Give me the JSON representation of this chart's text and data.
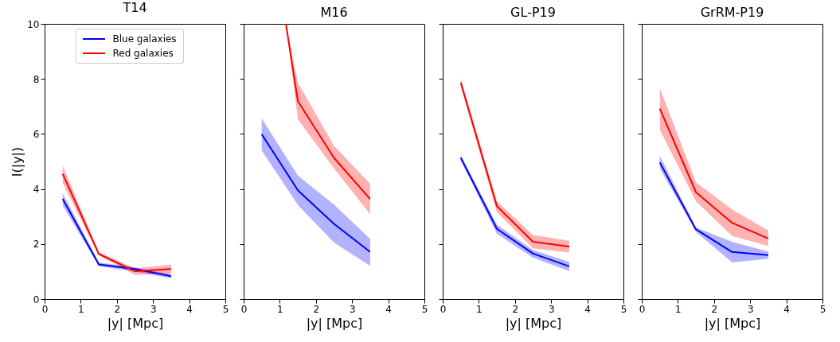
{
  "chart_data": [
    {
      "type": "line",
      "title": "T14",
      "xlabel": "|y| [Mpc]",
      "ylabel": "I(|y|)",
      "xlim": [
        0,
        5
      ],
      "xticks": [
        0,
        1,
        2,
        3,
        4,
        5
      ],
      "ylim": [
        0,
        10
      ],
      "yticks": [
        0,
        2,
        4,
        6,
        8,
        10
      ],
      "legend": "top",
      "x": [
        0.5,
        1.5,
        2.5,
        3.5
      ],
      "series": [
        {
          "name": "Blue galaxies",
          "color": "#0000ff",
          "values": [
            3.64,
            1.26,
            1.09,
            0.83
          ],
          "lower": [
            3.4,
            1.19,
            1.0,
            0.76
          ],
          "upper": [
            3.85,
            1.33,
            1.15,
            0.9
          ]
        },
        {
          "name": "Red galaxies",
          "color": "#ff0000",
          "values": [
            4.55,
            1.64,
            1.01,
            1.09
          ],
          "lower": [
            4.22,
            1.58,
            0.88,
            0.92
          ],
          "upper": [
            4.85,
            1.7,
            1.12,
            1.25
          ]
        }
      ]
    },
    {
      "type": "line",
      "title": "M16",
      "xlabel": "|y| [Mpc]",
      "xlim": [
        0,
        5
      ],
      "xticks": [
        0,
        1,
        2,
        3,
        4,
        5
      ],
      "ylim": [
        0,
        10
      ],
      "yticks": [
        0,
        2,
        4,
        6,
        8,
        10
      ],
      "tick_labels": "x",
      "x": [
        0.5,
        1.5,
        2.5,
        3.5
      ],
      "series": [
        {
          "color": "#0000ff",
          "values": [
            5.99,
            3.95,
            2.73,
            1.71
          ],
          "lower": [
            5.4,
            3.42,
            2.05,
            1.21
          ],
          "upper": [
            6.57,
            4.49,
            3.43,
            2.18
          ]
        },
        {
          "color": "#ff0000",
          "x": [
            1.17,
            1.5,
            2.5,
            3.5
          ],
          "values": [
            10,
            7.19,
            5.13,
            3.63
          ],
          "lower": [
            10,
            6.53,
            4.75,
            3.08
          ],
          "upper": [
            10,
            7.86,
            5.57,
            4.19
          ]
        }
      ]
    },
    {
      "type": "line",
      "title": "GL-P19",
      "xlabel": "|y| [Mpc]",
      "xlim": [
        0,
        5
      ],
      "xticks": [
        0,
        1,
        2,
        3,
        4,
        5
      ],
      "ylim": [
        0,
        10
      ],
      "yticks": [
        0,
        2,
        4,
        6,
        8,
        10
      ],
      "tick_labels": "x",
      "x": [
        0.5,
        1.5,
        2.5,
        3.5
      ],
      "series": [
        {
          "color": "#0000ff",
          "values": [
            5.13,
            2.55,
            1.65,
            1.19
          ],
          "lower": [
            5.04,
            2.37,
            1.5,
            1.02
          ],
          "upper": [
            5.23,
            2.7,
            1.78,
            1.35
          ]
        },
        {
          "color": "#ff0000",
          "values": [
            7.86,
            3.37,
            2.08,
            1.91
          ],
          "lower": [
            7.74,
            3.16,
            1.84,
            1.69
          ],
          "upper": [
            8.02,
            3.55,
            2.33,
            2.12
          ]
        }
      ]
    },
    {
      "type": "line",
      "title": "GrRM-P19",
      "xlabel": "|y| [Mpc]",
      "xlim": [
        0,
        5
      ],
      "xticks": [
        0,
        1,
        2,
        3,
        4,
        5
      ],
      "ylim": [
        0,
        10
      ],
      "yticks": [
        0,
        2,
        4,
        6,
        8,
        10
      ],
      "tick_labels": "x",
      "x": [
        0.5,
        1.5,
        2.5,
        3.5
      ],
      "series": [
        {
          "color": "#0000ff",
          "values": [
            4.96,
            2.53,
            1.71,
            1.6
          ],
          "lower": [
            4.75,
            2.44,
            1.33,
            1.47
          ],
          "upper": [
            5.2,
            2.6,
            2.08,
            1.73
          ]
        },
        {
          "color": "#ff0000",
          "values": [
            6.92,
            3.88,
            2.77,
            2.2
          ],
          "lower": [
            6.15,
            3.55,
            2.29,
            1.93
          ],
          "upper": [
            7.67,
            4.24,
            3.26,
            2.49
          ]
        }
      ]
    }
  ]
}
